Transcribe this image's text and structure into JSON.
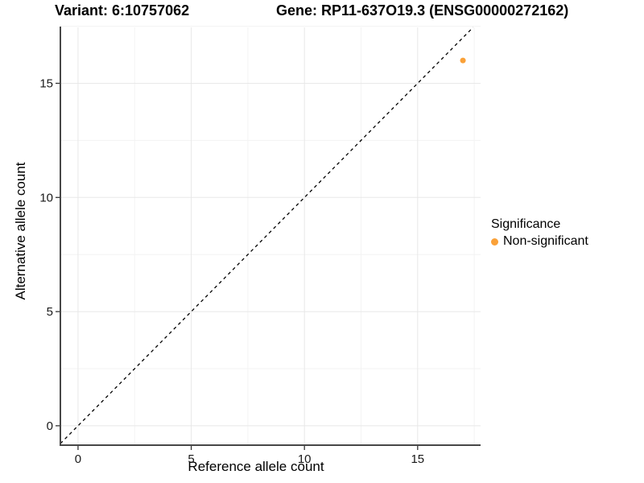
{
  "header": {
    "variant_title": "Variant: 6:10757062",
    "gene_title": "Gene: RP11-637O19.3 (ENSG00000272162)"
  },
  "chart_data": {
    "type": "scatter",
    "title": "Variant: 6:10757062    Gene: RP11-637O19.3 (ENSG00000272162)",
    "xlabel": "Reference allele count",
    "ylabel": "Alternative allele count",
    "xlim": [
      -0.78,
      17.78
    ],
    "ylim": [
      -0.85,
      17.45
    ],
    "x_ticks": [
      0,
      5,
      10,
      15
    ],
    "y_ticks": [
      0,
      5,
      10,
      15
    ],
    "x_minor_ticks": [
      2.5,
      7.5,
      12.5,
      17.5
    ],
    "y_minor_ticks": [
      2.5,
      7.5,
      12.5,
      17.5
    ],
    "grid": true,
    "points": [
      {
        "x": 17,
        "y": 16,
        "series": "Non-significant"
      }
    ],
    "reference_line": {
      "type": "identity",
      "slope": 1,
      "intercept": 0,
      "style": "dashed",
      "color": "#000000"
    },
    "legend": {
      "title": "Significance",
      "position": "right",
      "items": [
        {
          "label": "Non-significant",
          "color": "#FAA138"
        }
      ]
    },
    "colors": {
      "point": "#FAA138",
      "grid_major": "#E8E8E8",
      "grid_minor": "#F3F3F3",
      "axis_line": "#474747",
      "tick": "#333333",
      "tick_label": "#1a1a1a",
      "background": "#ffffff"
    }
  }
}
